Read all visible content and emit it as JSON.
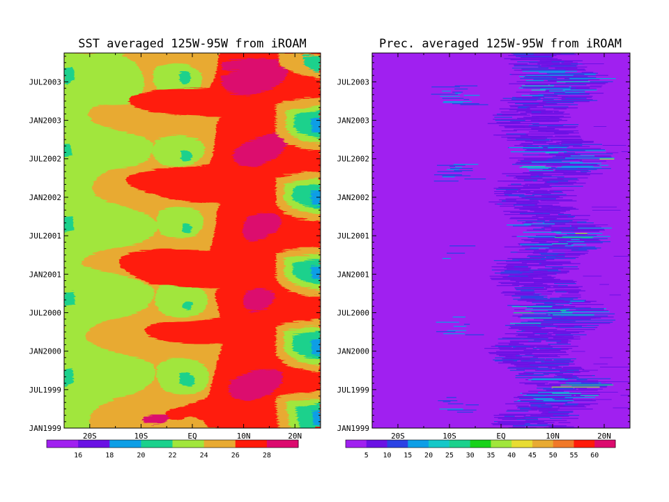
{
  "chart_data": [
    {
      "type": "heatmap",
      "title": "SST averaged 125W-95W from iROAM",
      "xlabel": "",
      "ylabel": "",
      "x_ticks": [
        "20S",
        "10S",
        "EQ",
        "10N",
        "20N"
      ],
      "x_tick_values": [
        -20,
        -10,
        0,
        10,
        20
      ],
      "xlim": [
        -25,
        25
      ],
      "y_ticks": [
        "JAN1999",
        "JUL1999",
        "JAN2000",
        "JUL2000",
        "JAN2001",
        "JUL2001",
        "JAN2002",
        "JUL2002",
        "JAN2003",
        "JUL2003"
      ],
      "y_tick_values": [
        0,
        6,
        12,
        18,
        24,
        30,
        36,
        42,
        48,
        54
      ],
      "ylim": [
        0,
        58.5
      ],
      "colorbar": {
        "levels": [
          "16",
          "18",
          "20",
          "22",
          "24",
          "26",
          "28"
        ],
        "colors": [
          "#a020f0",
          "#6a11e4",
          "#0d9ee6",
          "#1bd18c",
          "#a1e63c",
          "#e8aa32",
          "#ff1a0a",
          "#dc0a6e"
        ]
      },
      "color_mapping": "[24,26)=#e8aa32, [26,28)=#ff1a0a, >=28=#dc0a6e",
      "description": "SST minimum is at about 15S; a warm region north of the equator (about 10N) reaches more than 28 in the boreal spring; a cold tongue at the equator appears in the second half of each year; the northernmost latitudes cool during each boreal winter."
    },
    {
      "type": "heatmap",
      "title": "Prec. averaged 125W-95W from iROAM",
      "xlabel": "",
      "ylabel": "",
      "x_ticks": [
        "20S",
        "10S",
        "EQ",
        "10N",
        "20N"
      ],
      "x_tick_values": [
        -20,
        -10,
        0,
        10,
        20
      ],
      "xlim": [
        -25,
        25
      ],
      "y_ticks": [
        "JAN1999",
        "JUL1999",
        "JAN2000",
        "JUL2000",
        "JAN2001",
        "JUL2001",
        "JAN2002",
        "JUL2002",
        "JAN2003",
        "JUL2003"
      ],
      "y_tick_values": [
        0,
        6,
        12,
        18,
        24,
        30,
        36,
        42,
        48,
        54
      ],
      "ylim": [
        0,
        58.5
      ],
      "colorbar": {
        "levels": [
          "5",
          "10",
          "15",
          "20",
          "25",
          "30",
          "35",
          "40",
          "45",
          "50",
          "55",
          "60"
        ],
        "colors": [
          "#a020f0",
          "#6a11e4",
          "#2b42e4",
          "#0d9ee6",
          "#14c8c8",
          "#1bd18c",
          "#18d21a",
          "#a1e63c",
          "#e8dc32",
          "#e8aa32",
          "#f07828",
          "#ff1a0a",
          "#dc0a6e"
        ]
      },
      "description": "Precipitation below 5 almost everywhere; the ITCZ rain band is at about 5N-15N, 5-35 and locally over 40 in the boreal summer/autumn, moving north over the course of each year; brief southern-hemisphere bands appear at about 8S in the boreal spring."
    }
  ]
}
